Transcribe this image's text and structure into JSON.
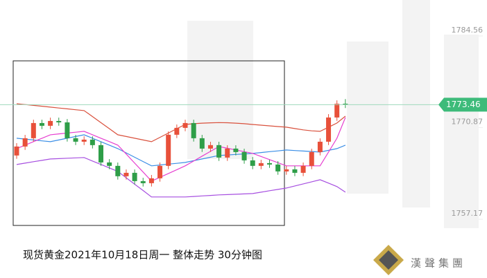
{
  "chart_data": {
    "type": "candlestick",
    "title": "现货黄金2021年10月18日周一 整体走势 30分钟图",
    "brand": "漢聲集團",
    "ylim": [
      1747.56,
      1789.11
    ],
    "yticks": [
      1757.17,
      1770.87,
      1784.56
    ],
    "last_price": 1773.46,
    "up_color": "#e8503a",
    "down_color": "#2e9e48",
    "categories": [
      null,
      null,
      null,
      null,
      null,
      null,
      null,
      null,
      null,
      null,
      null,
      null,
      null,
      null,
      null,
      null,
      null,
      null,
      null,
      null,
      null,
      null,
      null,
      null,
      null,
      null,
      null,
      null,
      null,
      null,
      null,
      null,
      null,
      null,
      null,
      null,
      null,
      null,
      null,
      null
    ],
    "open": [
      1765.87,
      1767.21,
      1768.45,
      1770.72,
      1770.31,
      1771.03,
      1770.82,
      1768.45,
      1767.93,
      1768.24,
      1767.42,
      1764.83,
      1764.32,
      1762.77,
      1763.28,
      1762.04,
      1761.73,
      1762.46,
      1764.32,
      1768.97,
      1770.0,
      1770.72,
      1768.45,
      1766.9,
      1767.42,
      1765.56,
      1766.9,
      1766.38,
      1765.14,
      1764.32,
      1764.73,
      1764.52,
      1763.49,
      1763.8,
      1763.28,
      1764.32,
      1766.38,
      1767.93,
      1771.55,
      1773.61
    ],
    "high": [
      1767.71,
      1768.95,
      1771.22,
      1771.22,
      1771.53,
      1771.53,
      1771.32,
      1768.95,
      1768.74,
      1768.74,
      1767.92,
      1765.33,
      1764.82,
      1763.78,
      1763.78,
      1762.54,
      1762.96,
      1764.82,
      1769.47,
      1770.5,
      1771.22,
      1771.22,
      1768.95,
      1767.92,
      1767.92,
      1767.4,
      1767.4,
      1766.88,
      1765.64,
      1765.23,
      1765.23,
      1765.02,
      1764.3,
      1764.3,
      1764.82,
      1766.88,
      1768.43,
      1772.05,
      1774.11,
      1774.3
    ],
    "low": [
      1765.37,
      1766.71,
      1767.95,
      1769.81,
      1769.81,
      1770.32,
      1767.95,
      1767.43,
      1767.43,
      1766.92,
      1764.33,
      1763.82,
      1762.27,
      1762.27,
      1761.54,
      1761.23,
      1761.23,
      1761.96,
      1763.82,
      1768.47,
      1769.5,
      1767.95,
      1766.4,
      1766.4,
      1765.06,
      1765.06,
      1765.88,
      1764.64,
      1763.82,
      1763.82,
      1764.02,
      1762.99,
      1762.99,
      1762.78,
      1762.78,
      1763.82,
      1765.88,
      1767.43,
      1771.05,
      1772.96
    ],
    "close": [
      1767.21,
      1768.45,
      1770.72,
      1770.31,
      1771.03,
      1770.82,
      1768.45,
      1767.93,
      1768.24,
      1767.42,
      1764.83,
      1764.32,
      1762.77,
      1763.28,
      1762.04,
      1761.73,
      1762.46,
      1764.32,
      1768.97,
      1770.0,
      1770.72,
      1768.45,
      1766.9,
      1767.42,
      1765.56,
      1766.9,
      1766.38,
      1765.14,
      1764.32,
      1764.73,
      1764.52,
      1763.49,
      1763.8,
      1763.28,
      1764.32,
      1766.38,
      1767.93,
      1771.55,
      1773.61,
      1773.46
    ],
    "series": [
      {
        "color": "#d9503c",
        "values": [
          1773.61,
          1773.48,
          1773.36,
          1773.23,
          1773.1,
          1772.97,
          1772.84,
          1772.71,
          1772.58,
          1771.68,
          1770.77,
          1769.87,
          1768.97,
          1768.71,
          1768.45,
          1768.19,
          1767.93,
          1768.58,
          1769.22,
          1769.87,
          1770.51,
          1770.62,
          1770.7,
          1770.75,
          1770.78,
          1770.76,
          1770.7,
          1770.62,
          1770.51,
          1770.4,
          1770.3,
          1770.2,
          1770.1,
          1769.9,
          1769.7,
          1769.55,
          1769.48,
          1770.1,
          1770.72,
          1771.75
        ]
      },
      {
        "color": "#3a8ee6",
        "values": [
          1768.45,
          1768.32,
          1768.19,
          1768.06,
          1767.93,
          1768.19,
          1768.45,
          1768.71,
          1768.97,
          1768.45,
          1767.93,
          1767.42,
          1766.9,
          1766.26,
          1765.61,
          1764.97,
          1764.32,
          1764.45,
          1764.58,
          1764.7,
          1764.83,
          1765.09,
          1765.35,
          1765.61,
          1765.87,
          1765.95,
          1766.03,
          1766.1,
          1766.18,
          1766.31,
          1766.44,
          1766.56,
          1766.69,
          1766.61,
          1766.54,
          1766.46,
          1766.38,
          1766.64,
          1766.9,
          1767.42
        ]
      },
      {
        "color": "#a64ee0",
        "values": [
          1764.52,
          1764.73,
          1764.94,
          1765.14,
          1765.35,
          1765.4,
          1765.46,
          1765.51,
          1765.56,
          1765.04,
          1764.53,
          1764.01,
          1763.49,
          1762.54,
          1761.58,
          1760.63,
          1759.67,
          1759.67,
          1759.67,
          1759.67,
          1759.67,
          1759.75,
          1759.83,
          1759.9,
          1759.98,
          1760.03,
          1760.08,
          1760.13,
          1760.18,
          1760.39,
          1760.6,
          1760.8,
          1761.01,
          1761.32,
          1761.63,
          1761.94,
          1762.25,
          1761.74,
          1761.22,
          1760.39
        ]
      },
      {
        "color": "#e63fd0",
        "values": [
          1766.9,
          1767.42,
          1767.94,
          1768.45,
          1768.97,
          1769.1,
          1769.22,
          1769.35,
          1769.48,
          1768.97,
          1768.45,
          1767.94,
          1767.42,
          1766.08,
          1764.73,
          1763.39,
          1762.04,
          1762.61,
          1763.18,
          1763.75,
          1764.32,
          1765.04,
          1765.77,
          1766.49,
          1767.21,
          1766.95,
          1766.7,
          1766.44,
          1766.18,
          1765.72,
          1765.25,
          1764.79,
          1764.32,
          1764.32,
          1764.32,
          1764.32,
          1764.32,
          1766.39,
          1768.45,
          1771.55
        ]
      }
    ]
  }
}
